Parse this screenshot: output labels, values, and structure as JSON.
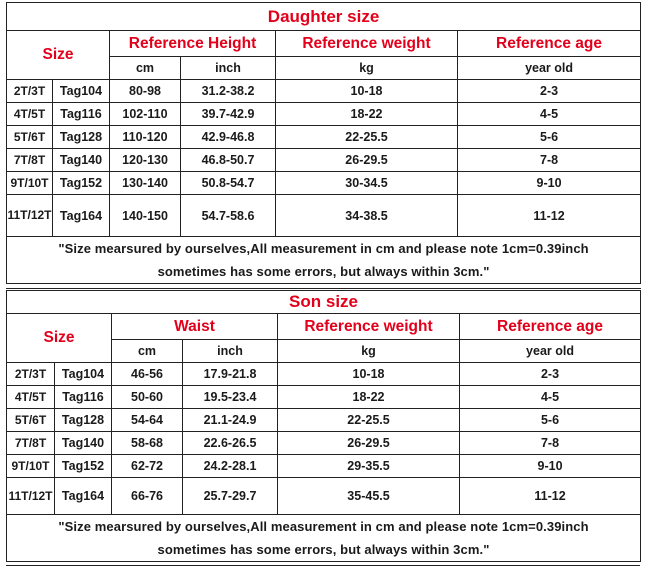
{
  "tables": [
    {
      "title": "Daughter size",
      "size_header": "Size",
      "col_headers": [
        "Reference Height",
        "Reference weight",
        "Reference age"
      ],
      "sub_headers": [
        "cm",
        "inch",
        "kg",
        "year old"
      ],
      "rows": [
        [
          "2T/3T",
          "Tag104",
          "80-98",
          "31.2-38.2",
          "10-18",
          "2-3"
        ],
        [
          "4T/5T",
          "Tag116",
          "102-110",
          "39.7-42.9",
          "18-22",
          "4-5"
        ],
        [
          "5T/6T",
          "Tag128",
          "110-120",
          "42.9-46.8",
          "22-25.5",
          "5-6"
        ],
        [
          "7T/8T",
          "Tag140",
          "120-130",
          "46.8-50.7",
          "26-29.5",
          "7-8"
        ],
        [
          "9T/10T",
          "Tag152",
          "130-140",
          "50.8-54.7",
          "30-34.5",
          "9-10"
        ],
        [
          "11T/12T",
          "Tag164",
          "140-150",
          "54.7-58.6",
          "34-38.5",
          "11-12"
        ]
      ],
      "note_line1": "\"Size mearsured by ourselves,All measurement in cm and please note 1cm=0.39inch",
      "note_line2": "sometimes has some errors, but always within 3cm.\""
    },
    {
      "title": "Son size",
      "size_header": "Size",
      "col_headers": [
        "Waist",
        "Reference weight",
        "Reference age"
      ],
      "sub_headers": [
        "cm",
        "inch",
        "kg",
        "year old"
      ],
      "rows": [
        [
          "2T/3T",
          "Tag104",
          "46-56",
          "17.9-21.8",
          "10-18",
          "2-3"
        ],
        [
          "4T/5T",
          "Tag116",
          "50-60",
          "19.5-23.4",
          "18-22",
          "4-5"
        ],
        [
          "5T/6T",
          "Tag128",
          "54-64",
          "21.1-24.9",
          "22-25.5",
          "5-6"
        ],
        [
          "7T/8T",
          "Tag140",
          "58-68",
          "22.6-26.5",
          "26-29.5",
          "7-8"
        ],
        [
          "9T/10T",
          "Tag152",
          "62-72",
          "24.2-28.1",
          "29-35.5",
          "9-10"
        ],
        [
          "11T/12T",
          "Tag164",
          "66-76",
          "25.7-29.7",
          "35-45.5",
          "11-12"
        ]
      ],
      "note_line1": "\"Size mearsured by ourselves,All measurement in cm and please note 1cm=0.39inch",
      "note_line2": "sometimes has some errors, but always within 3cm.\""
    }
  ],
  "colors": {
    "accent": "#e3001b",
    "text": "#1a1a1a",
    "border": "#222222"
  }
}
